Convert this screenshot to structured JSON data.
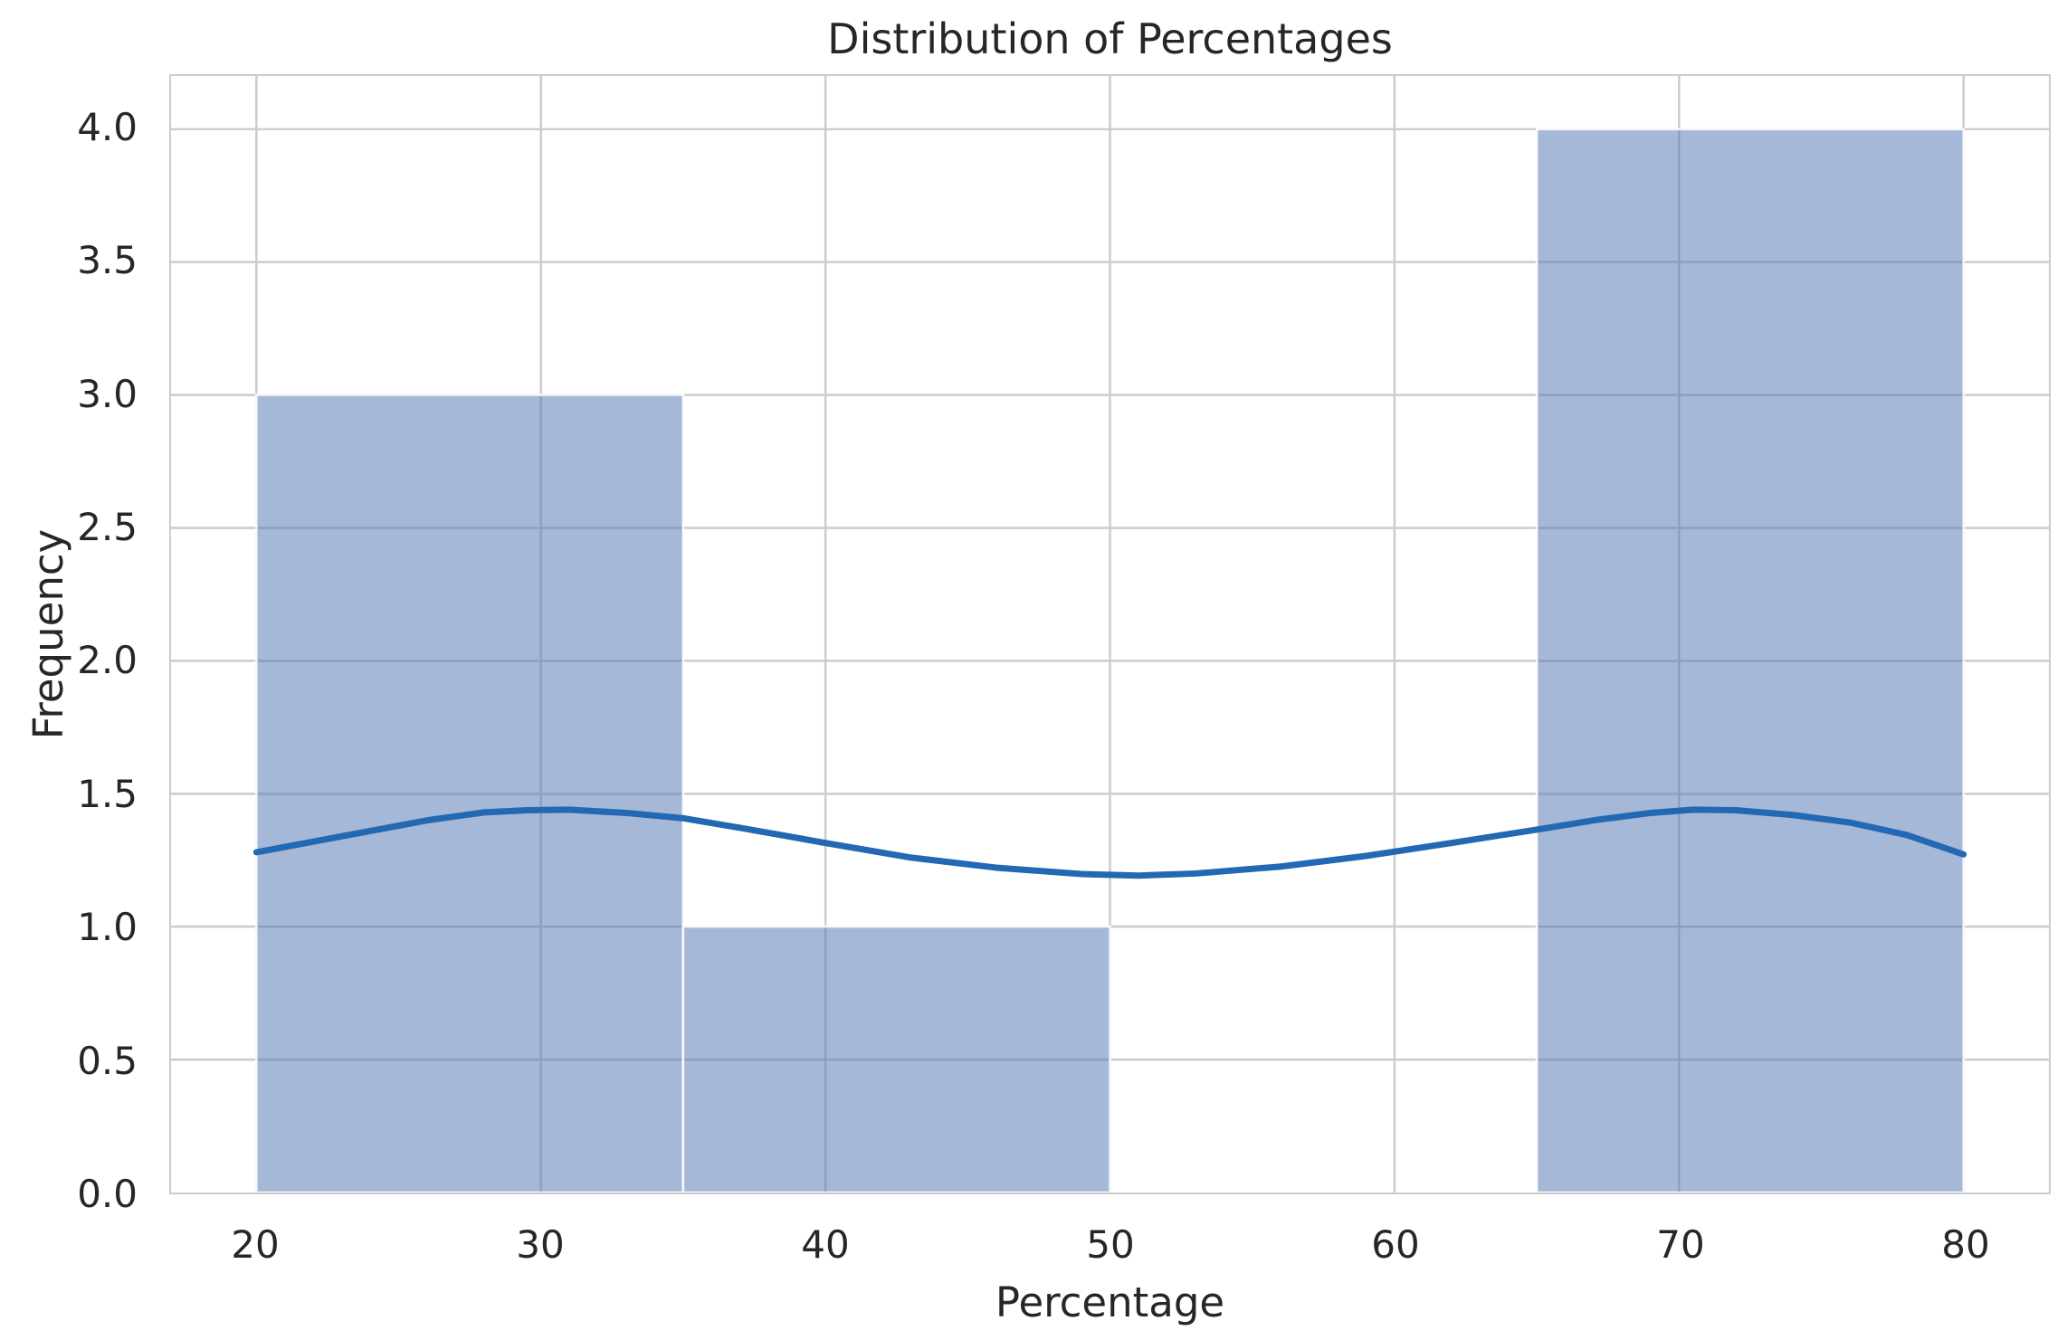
{
  "chart_data": {
    "type": "bar",
    "subtype": "histogram-with-kde",
    "title": "Distribution of Percentages",
    "xlabel": "Percentage",
    "ylabel": "Frequency",
    "xlim": [
      17,
      83
    ],
    "ylim": [
      0,
      4.2
    ],
    "grid": "on",
    "legend": "none",
    "bars": [
      {
        "range": [
          20,
          35
        ],
        "frequency": 3
      },
      {
        "range": [
          35,
          50
        ],
        "frequency": 1
      },
      {
        "range": [
          65,
          80
        ],
        "frequency": 4
      }
    ],
    "x_gridlines": [
      20,
      30,
      40,
      50,
      60,
      70,
      80
    ],
    "y_gridlines": [
      0.5,
      1.0,
      1.5,
      2.0,
      2.5,
      3.0,
      3.5,
      4.0
    ],
    "x_ticks": [
      {
        "value": 20,
        "label": "20"
      },
      {
        "value": 30,
        "label": "30"
      },
      {
        "value": 40,
        "label": "40"
      },
      {
        "value": 50,
        "label": "50"
      },
      {
        "value": 60,
        "label": "60"
      },
      {
        "value": 70,
        "label": "70"
      },
      {
        "value": 80,
        "label": "80"
      }
    ],
    "y_ticks": [
      {
        "value": 0.0,
        "label": "0.0"
      },
      {
        "value": 0.5,
        "label": "0.5"
      },
      {
        "value": 1.0,
        "label": "1.0"
      },
      {
        "value": 1.5,
        "label": "1.5"
      },
      {
        "value": 2.0,
        "label": "2.0"
      },
      {
        "value": 2.5,
        "label": "2.5"
      },
      {
        "value": 3.0,
        "label": "3.0"
      },
      {
        "value": 3.5,
        "label": "3.5"
      },
      {
        "value": 4.0,
        "label": "4.0"
      }
    ],
    "kde_curve": [
      [
        20,
        1.28
      ],
      [
        22,
        1.32
      ],
      [
        24,
        1.36
      ],
      [
        26,
        1.4
      ],
      [
        28,
        1.43
      ],
      [
        29.5,
        1.438
      ],
      [
        31,
        1.44
      ],
      [
        33,
        1.428
      ],
      [
        35,
        1.408
      ],
      [
        37,
        1.372
      ],
      [
        40,
        1.315
      ],
      [
        43,
        1.26
      ],
      [
        46,
        1.222
      ],
      [
        49,
        1.198
      ],
      [
        51,
        1.192
      ],
      [
        53,
        1.2
      ],
      [
        56,
        1.226
      ],
      [
        59,
        1.266
      ],
      [
        62,
        1.315
      ],
      [
        65,
        1.365
      ],
      [
        67,
        1.4
      ],
      [
        69,
        1.428
      ],
      [
        70.5,
        1.44
      ],
      [
        72,
        1.438
      ],
      [
        74,
        1.42
      ],
      [
        76,
        1.392
      ],
      [
        78,
        1.345
      ],
      [
        80,
        1.272
      ]
    ],
    "colors": {
      "bar_fill": "#4C72B0",
      "bar_fill_opacity": 0.5,
      "bar_edge": "#ffffff",
      "kde_line": "#2268b2",
      "grid": "#cccccc",
      "text": "#262626",
      "background": "#ffffff"
    }
  }
}
